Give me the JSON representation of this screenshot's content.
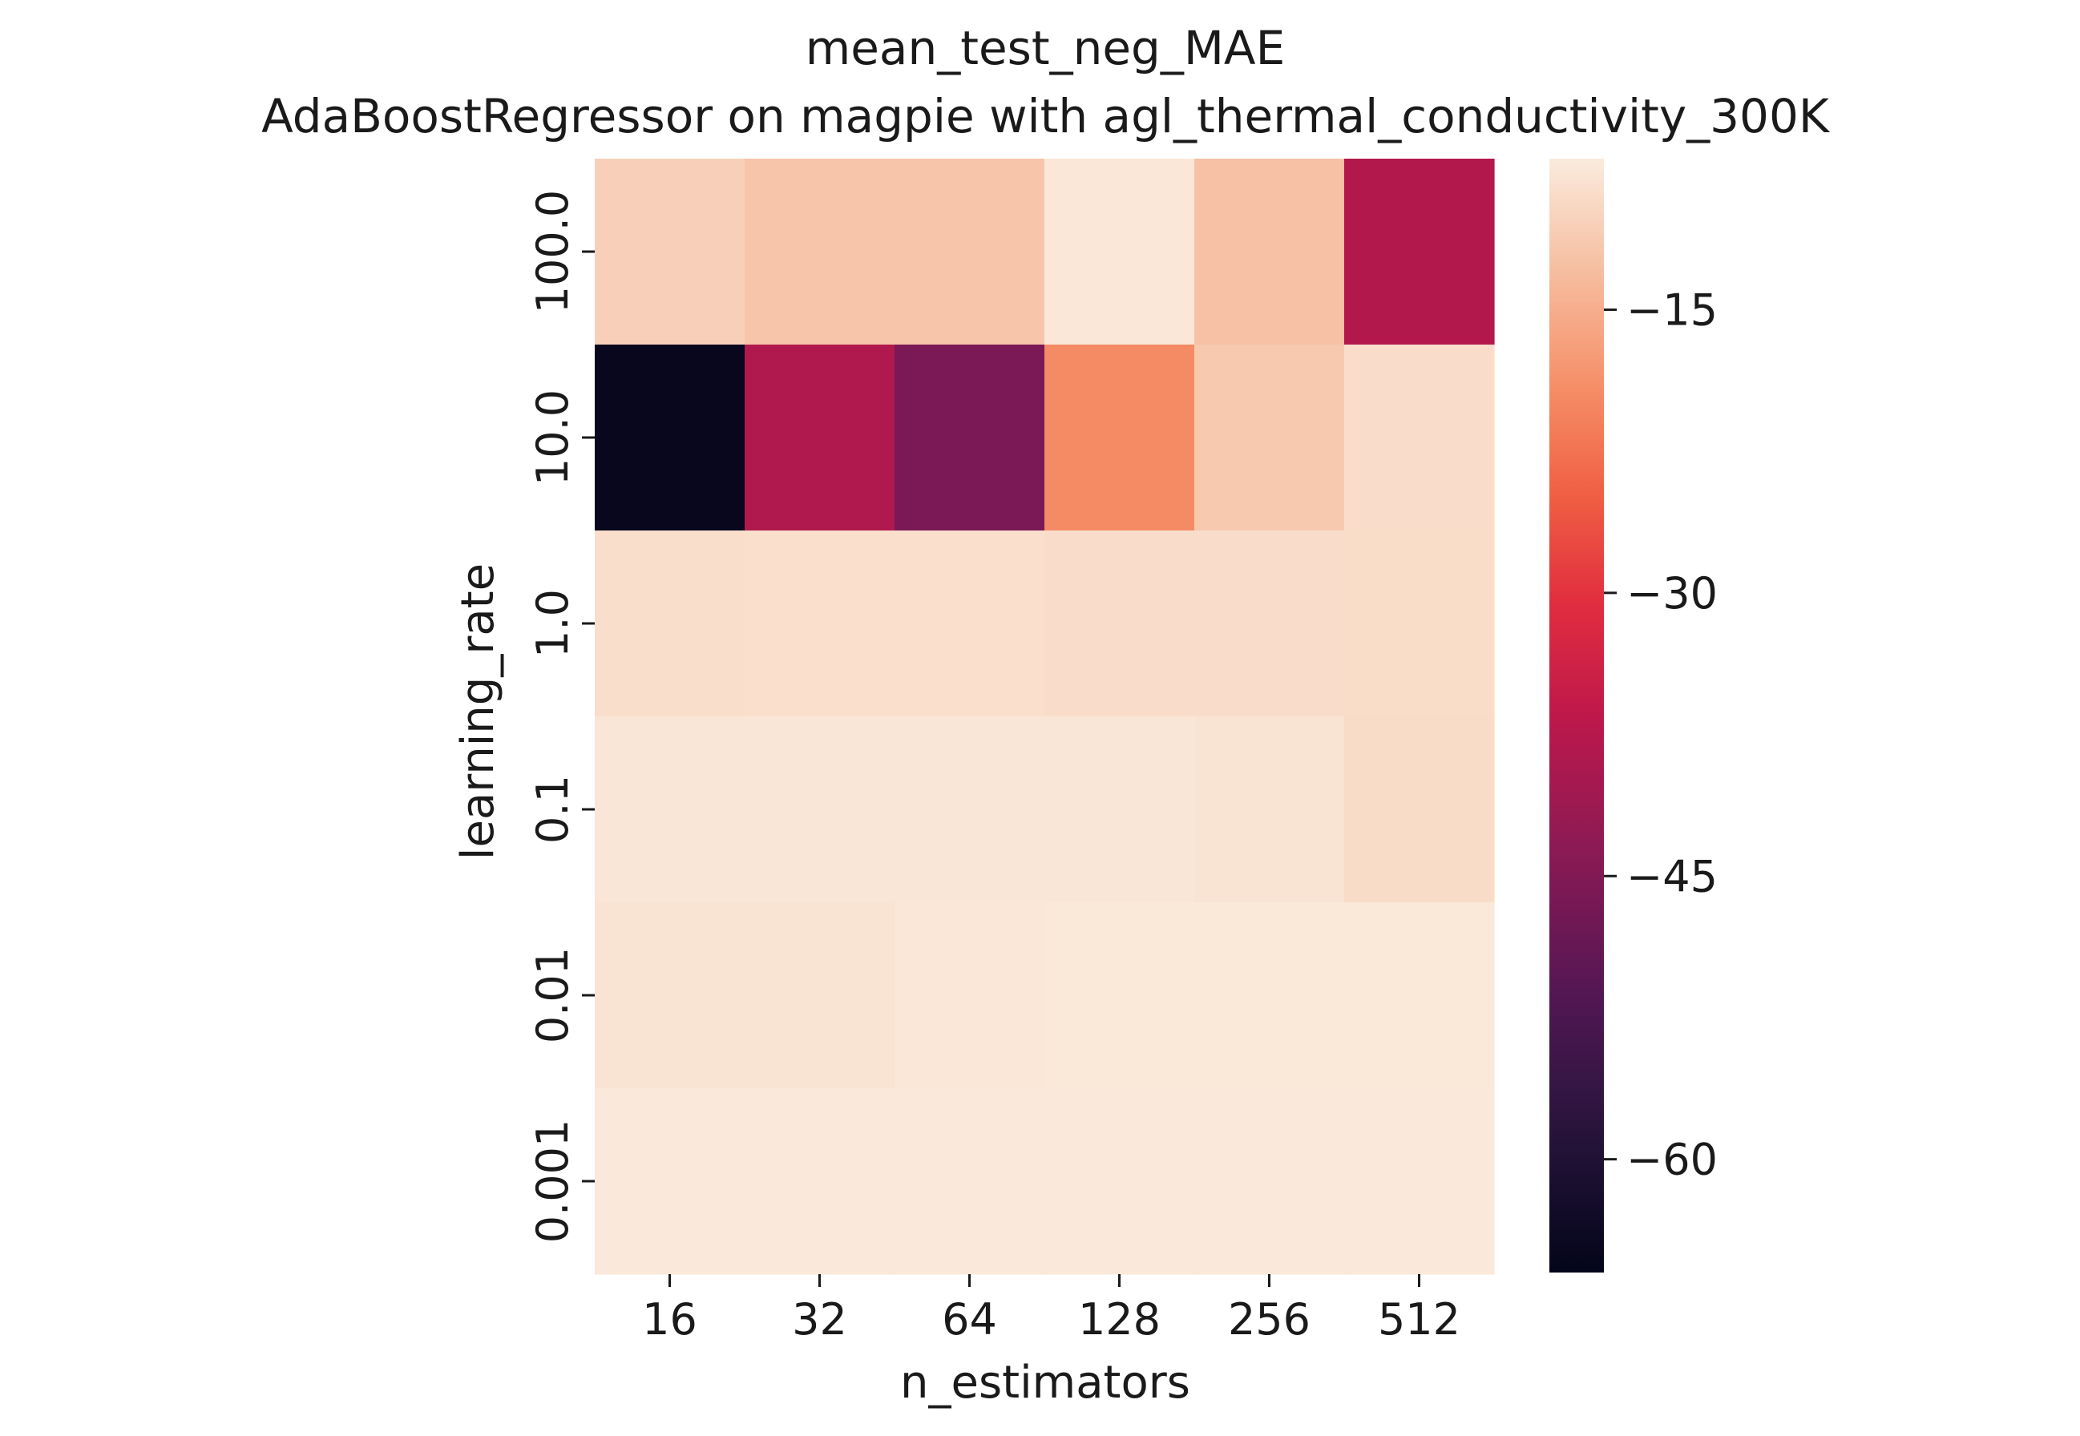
{
  "chart_data": {
    "type": "heatmap",
    "title": "mean_test_neg_MAE",
    "subtitle": "AdaBoostRegressor on magpie with agl_thermal_conductivity_300K",
    "xlabel": "n_estimators",
    "ylabel": "learning_rate",
    "x_categories": [
      "16",
      "32",
      "64",
      "128",
      "256",
      "512"
    ],
    "y_categories": [
      "100.0",
      "10.0",
      "1.0",
      "0.1",
      "0.01",
      "0.001"
    ],
    "values": [
      [
        -10.5,
        -12.0,
        -12.0,
        -7.5,
        -12.5,
        -38.0
      ],
      [
        -65.0,
        -38.5,
        -46.0,
        -19.5,
        -11.5,
        -8.8
      ],
      [
        -8.7,
        -8.6,
        -8.6,
        -8.8,
        -8.8,
        -8.9
      ],
      [
        -7.6,
        -7.6,
        -7.6,
        -7.6,
        -7.9,
        -9.0
      ],
      [
        -7.9,
        -8.0,
        -7.5,
        -7.4,
        -7.4,
        -7.4
      ],
      [
        -7.3,
        -7.3,
        -7.3,
        -7.3,
        -7.3,
        -7.3
      ]
    ],
    "colorbar": {
      "colormap": "rocket",
      "range": [
        -66.0,
        -7.0
      ],
      "ticks": [
        -15,
        -30,
        -45,
        -60
      ],
      "tick_labels": [
        "−15",
        "−30",
        "−45",
        "−60"
      ]
    },
    "grid": false,
    "legend": "colorbar-right"
  }
}
